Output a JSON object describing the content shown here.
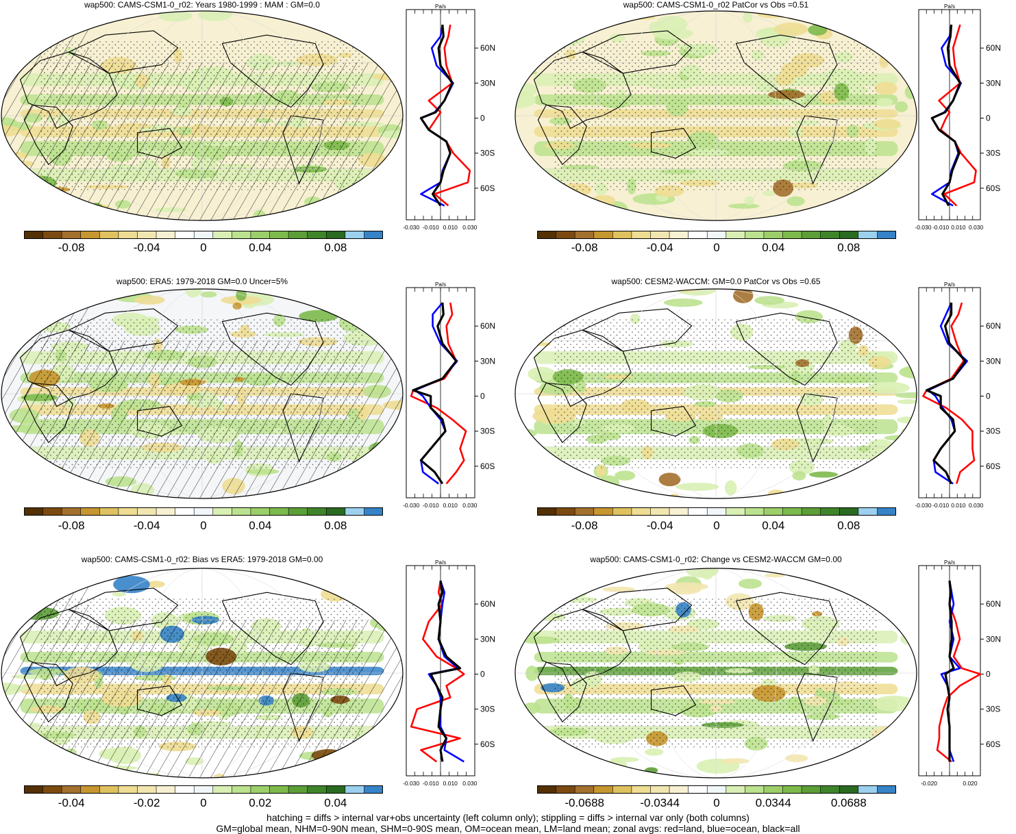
{
  "colorbar_colors": [
    "#543005",
    "#7c4a10",
    "#a3702e",
    "#c6962f",
    "#dfc25f",
    "#eedd92",
    "#f2e6b0",
    "#f7f0d2",
    "#ffffff",
    "#f1f6f8",
    "#d9efb4",
    "#bbe28e",
    "#9ccf6a",
    "#7dba4c",
    "#5c9f37",
    "#3e852a",
    "#2b6a21",
    "#9bd1ee",
    "#3683c8"
  ],
  "panels": [
    {
      "title": "wap500: CAMS-CSM1-0_r02: Years 1980-1999 : MAM : GM=0.0",
      "hatch": true,
      "ticks": [
        "-0.08",
        "-0.04",
        "0",
        "0.04",
        "0.08"
      ],
      "zonal_unit": "Pa/s",
      "zonal_lat_labels": [
        "60N",
        "30N",
        "0",
        "30S",
        "60S"
      ],
      "zonal_x_ticks": [
        "-0.030",
        "-0.010",
        "0.010",
        "0.030"
      ]
    },
    {
      "title": "wap500: CAMS-CSM1-0_r02 PatCor vs Obs =0.51",
      "hatch": false,
      "ticks": [
        "-0.08",
        "-0.04",
        "0",
        "0.04",
        "0.08"
      ],
      "zonal_unit": "Pa/s",
      "zonal_lat_labels": [
        "60N",
        "30N",
        "0",
        "30S",
        "60S"
      ],
      "zonal_x_ticks": [
        "-0.030",
        "-0.010",
        "0.010",
        "0.030"
      ]
    },
    {
      "title": "wap500: ERA5: 1979-2018 GM=0.0 Uncer=5%",
      "hatch": true,
      "ticks": [
        "-0.08",
        "-0.04",
        "0",
        "0.04",
        "0.08"
      ],
      "zonal_unit": "Pa/s",
      "zonal_lat_labels": [
        "60N",
        "30N",
        "0",
        "30S",
        "60S"
      ],
      "zonal_x_ticks": [
        "-0.030",
        "-0.010",
        "0.010",
        "0.030"
      ]
    },
    {
      "title": "wap500: CESM2-WACCM: GM=0.0 PatCor vs Obs =0.65",
      "hatch": false,
      "ticks": [
        "-0.08",
        "-0.04",
        "0",
        "0.04",
        "0.08"
      ],
      "zonal_unit": "Pa/s",
      "zonal_lat_labels": [
        "60N",
        "30N",
        "0",
        "30S",
        "60S"
      ],
      "zonal_x_ticks": [
        "-0.030",
        "-0.010",
        "0.010",
        "0.030"
      ]
    },
    {
      "title": "wap500: CAMS-CSM1-0_r02: Bias vs ERA5: 1979-2018 GM=0.00",
      "hatch": true,
      "ticks": [
        "-0.04",
        "-0.02",
        "0",
        "0.02",
        "0.04"
      ],
      "zonal_unit": "Pa/s",
      "zonal_lat_labels": [
        "60N",
        "30N",
        "0",
        "30S",
        "60S"
      ],
      "zonal_x_ticks": [
        "-0.030",
        "-0.010",
        "0.010",
        "0.030"
      ]
    },
    {
      "title": "wap500: CAMS-CSM1-0_r02: Change vs CESM2-WACCM GM=0.00",
      "hatch": false,
      "ticks": [
        "-0.0688",
        "-0.0344",
        "0",
        "0.0344",
        "0.0688"
      ],
      "zonal_unit": "Pa/s",
      "zonal_lat_labels": [
        "60N",
        "30N",
        "0",
        "30S",
        "60S"
      ],
      "zonal_x_ticks": [
        "-0.020",
        "0.020"
      ]
    }
  ],
  "chart_data": {
    "type": "heatmap",
    "variable": "wap500",
    "zonal_series_colors": {
      "land": "#ff0000",
      "ocean": "#0000ff",
      "all": "#000000"
    },
    "zonal_profiles": [
      {
        "panel": 0,
        "lat": [
          80,
          70,
          60,
          45,
          30,
          15,
          5,
          0,
          -10,
          -20,
          -30,
          -45,
          -55,
          -65,
          -75
        ],
        "all": [
          0.002,
          0.003,
          -0.002,
          0.0,
          0.012,
          0.004,
          -0.005,
          -0.02,
          -0.012,
          0.006,
          0.01,
          0.003,
          0.0,
          -0.008,
          0.0
        ],
        "ocean": [
          0.002,
          0.0,
          -0.009,
          -0.004,
          0.013,
          0.004,
          -0.006,
          -0.02,
          -0.012,
          0.006,
          0.01,
          0.002,
          0.0,
          -0.02,
          0.004
        ],
        "land": [
          0.01,
          0.008,
          0.004,
          0.006,
          0.012,
          -0.012,
          0.0,
          -0.004,
          -0.012,
          0.006,
          0.013,
          0.03,
          0.028,
          -0.006,
          0.008
        ]
      },
      {
        "panel": 1,
        "lat": [
          80,
          70,
          60,
          45,
          30,
          15,
          5,
          0,
          -10,
          -20,
          -30,
          -45,
          -55,
          -65,
          -75
        ],
        "all": [
          0.002,
          0.001,
          -0.002,
          0.0,
          0.012,
          0.004,
          -0.005,
          -0.02,
          -0.012,
          0.006,
          0.011,
          0.003,
          0.0,
          -0.008,
          -0.001
        ],
        "ocean": [
          0.002,
          0.0,
          -0.009,
          -0.004,
          0.013,
          0.004,
          -0.006,
          -0.02,
          -0.012,
          0.006,
          0.01,
          0.002,
          0.0,
          -0.02,
          0.004
        ],
        "land": [
          0.012,
          0.008,
          0.004,
          0.006,
          0.012,
          -0.012,
          0.0,
          -0.004,
          -0.01,
          0.006,
          0.013,
          0.03,
          0.028,
          -0.006,
          0.008
        ]
      },
      {
        "panel": 2,
        "lat": [
          80,
          70,
          60,
          45,
          30,
          15,
          5,
          0,
          -10,
          -20,
          -30,
          -45,
          -55,
          -65,
          -75
        ],
        "all": [
          0.002,
          0.003,
          -0.003,
          0.002,
          0.016,
          0.002,
          -0.028,
          -0.01,
          -0.01,
          0.002,
          0.005,
          -0.01,
          -0.02,
          -0.006,
          0.002
        ],
        "ocean": [
          0.002,
          -0.008,
          -0.008,
          0.0,
          0.017,
          0.002,
          -0.026,
          -0.018,
          -0.01,
          0.0,
          0.005,
          -0.01,
          -0.02,
          -0.018,
          -0.002
        ],
        "land": [
          0.01,
          0.012,
          0.006,
          0.008,
          0.016,
          0.004,
          -0.028,
          -0.03,
          -0.004,
          0.012,
          0.026,
          0.02,
          0.024,
          0.016,
          0.006
        ]
      },
      {
        "panel": 3,
        "lat": [
          80,
          70,
          60,
          45,
          30,
          15,
          5,
          0,
          -10,
          -20,
          -30,
          -45,
          -55,
          -65,
          -75
        ],
        "all": [
          0.002,
          0.002,
          -0.005,
          0.0,
          0.018,
          0.004,
          -0.026,
          -0.01,
          -0.01,
          0.004,
          0.006,
          -0.01,
          -0.018,
          -0.004,
          0.002
        ],
        "ocean": [
          0.002,
          -0.004,
          -0.01,
          -0.002,
          0.02,
          0.004,
          -0.024,
          -0.016,
          -0.008,
          0.002,
          0.006,
          -0.01,
          -0.018,
          -0.016,
          0.004
        ],
        "land": [
          0.014,
          0.01,
          0.002,
          0.008,
          0.016,
          0.002,
          -0.026,
          -0.03,
          -0.004,
          0.014,
          0.026,
          0.026,
          0.028,
          0.012,
          0.008
        ]
      },
      {
        "panel": 4,
        "lat": [
          80,
          70,
          60,
          45,
          30,
          15,
          5,
          0,
          -10,
          -20,
          -30,
          -45,
          -55,
          -65,
          -75
        ],
        "all": [
          0.0,
          0.002,
          -0.002,
          0.0,
          -0.002,
          0.006,
          0.02,
          -0.01,
          -0.004,
          0.002,
          0.0,
          -0.002,
          0.006,
          0.0,
          0.002
        ],
        "ocean": [
          0.0,
          0.004,
          0.002,
          0.0,
          -0.002,
          0.004,
          0.018,
          -0.012,
          -0.004,
          0.0,
          0.0,
          0.0,
          0.006,
          0.004,
          0.024
        ],
        "land": [
          0.0,
          -0.002,
          0.002,
          -0.012,
          -0.018,
          -0.004,
          0.016,
          0.024,
          0.006,
          0.01,
          -0.024,
          -0.03,
          0.02,
          -0.02,
          -0.004
        ]
      },
      {
        "panel": 5,
        "lat": [
          80,
          70,
          60,
          45,
          30,
          15,
          5,
          0,
          -10,
          -20,
          -30,
          -45,
          -55,
          -65,
          -75
        ],
        "all": [
          0.0,
          0.001,
          0.0,
          0.002,
          0.002,
          0.0,
          0.004,
          -0.004,
          -0.002,
          0.0,
          -0.002,
          0.0,
          0.0,
          0.0,
          0.0
        ],
        "ocean": [
          0.0,
          0.002,
          0.004,
          0.0,
          0.004,
          0.0,
          0.01,
          -0.008,
          -0.002,
          0.0,
          -0.002,
          0.0,
          0.0,
          0.0,
          0.004
        ],
        "land": [
          0.0,
          0.002,
          0.0,
          0.006,
          0.01,
          0.004,
          0.012,
          0.03,
          0.01,
          -0.002,
          -0.006,
          -0.01,
          -0.01,
          -0.012,
          0.002
        ]
      }
    ]
  },
  "footer": {
    "line1": "hatching = diffs > internal var+obs uncertainty (left column only); stippling = diffs > internal var only (both columns)",
    "line2": "GM=global mean, NHM=0-90N mean, SHM=0-90S mean, OM=ocean mean, LM=land mean; zonal avgs: red=land, blue=ocean, black=all"
  }
}
